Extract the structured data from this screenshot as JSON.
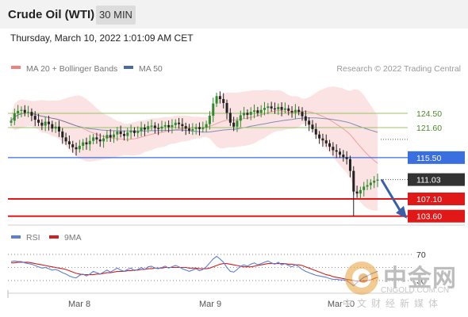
{
  "header": {
    "title": "Crude Oil (WTI)",
    "timeframe": "30 MIN"
  },
  "datetime": "Thursday, March 10, 2022 1:01:09 AM CET",
  "legend": {
    "ma20": "MA 20 + Bollinger Bands",
    "ma50": "MA 50",
    "credit": "Research © 2022 Trading Central",
    "rsi": "RSI",
    "rsi_ma": "9MA"
  },
  "colors": {
    "ma20_band": "#f08080",
    "ma50": "#4a6aa5",
    "resistance": "#9dc16b",
    "pivot": "#3a6fe0",
    "support": "#e01818",
    "last_price": "#333333",
    "rsi": "#5b7fd6",
    "rsi_ma": "#d02020",
    "candle_up": "#2e8b2e",
    "candle_down": "#222222"
  },
  "watermark": {
    "chars": "中金网",
    "url": "CNGOLD.COM.CN",
    "sub": "中文财经新媒体"
  },
  "chart_data": {
    "type": "candlestick",
    "x_labels": [
      "Mar 8",
      "Mar 9",
      "Mar 10"
    ],
    "last_price": 111.03,
    "levels": [
      {
        "value": 124.5,
        "label": "124.50",
        "kind": "resistance"
      },
      {
        "value": 121.6,
        "label": "121.60",
        "kind": "resistance"
      },
      {
        "value": 115.5,
        "label": "115.50",
        "kind": "pivot"
      },
      {
        "value": 107.1,
        "label": "107.10",
        "kind": "support"
      },
      {
        "value": 103.6,
        "label": "103.60",
        "kind": "support"
      }
    ],
    "close": [
      123.0,
      124.5,
      125.0,
      125.2,
      124.6,
      124.8,
      124.0,
      123.2,
      122.6,
      122.0,
      122.8,
      122.3,
      121.4,
      121.8,
      120.8,
      119.6,
      118.8,
      118.2,
      117.6,
      117.2,
      117.9,
      118.6,
      118.2,
      118.9,
      119.6,
      119.2,
      118.8,
      119.4,
      120.1,
      119.6,
      120.2,
      120.8,
      120.3,
      119.9,
      120.6,
      121.0,
      120.5,
      120.9,
      121.6,
      121.2,
      121.9,
      122.0,
      121.5,
      121.4,
      121.8,
      122.1,
      121.7,
      122.1,
      122.6,
      122.3,
      121.9,
      121.4,
      121.0,
      121.3,
      121.7,
      121.3,
      121.6,
      122.3,
      124.0,
      126.5,
      128.0,
      127.4,
      126.6,
      124.6,
      122.6,
      121.8,
      123.0,
      124.1,
      124.6,
      124.2,
      124.8,
      125.1,
      124.6,
      125.2,
      125.6,
      125.9,
      125.5,
      125.3,
      125.8,
      125.2,
      125.5,
      125.0,
      124.7,
      125.2,
      124.8,
      123.9,
      123.0,
      122.2,
      121.3,
      120.2,
      119.4,
      119.0,
      118.4,
      117.7,
      117.0,
      116.7,
      116.1,
      115.6,
      115.2,
      112.8,
      108.6,
      108.2,
      108.9,
      109.6,
      109.9,
      110.4,
      110.8,
      111.03
    ],
    "rsi_levels": [
      70,
      30
    ],
    "rsi": [
      59,
      60,
      59,
      59,
      57,
      56,
      55,
      53,
      51,
      49,
      50,
      48,
      46,
      47,
      45,
      42,
      40,
      37,
      35,
      34,
      38,
      40,
      37,
      40,
      44,
      42,
      40,
      43,
      46,
      43,
      46,
      49,
      46,
      44,
      47,
      49,
      45,
      47,
      50,
      47,
      51,
      52,
      49,
      48,
      50,
      52,
      49,
      51,
      53,
      51,
      48,
      46,
      44,
      46,
      48,
      45,
      47,
      51,
      57,
      63,
      67,
      63,
      58,
      50,
      44,
      43,
      47,
      52,
      54,
      52,
      55,
      57,
      54,
      56,
      58,
      60,
      57,
      55,
      58,
      54,
      56,
      53,
      51,
      54,
      51,
      47,
      44,
      42,
      40,
      38,
      37,
      36,
      35,
      33,
      32,
      32,
      31,
      31,
      30,
      26,
      22,
      27,
      31,
      35,
      37,
      40,
      42,
      44
    ],
    "rsi_ma": [
      57,
      57,
      58,
      58,
      58,
      58,
      57,
      56,
      55,
      54,
      53,
      52,
      51,
      50,
      49,
      48,
      47,
      45,
      43,
      41,
      40,
      39,
      39,
      39,
      39,
      40,
      40,
      41,
      42,
      42,
      43,
      44,
      44,
      44,
      45,
      45,
      46,
      46,
      47,
      47,
      48,
      48,
      49,
      49,
      49,
      50,
      50,
      50,
      50,
      50,
      50,
      50,
      49,
      49,
      49,
      48,
      48,
      48,
      49,
      51,
      53,
      55,
      56,
      56,
      55,
      54,
      53,
      52,
      51,
      51,
      51,
      52,
      53,
      54,
      55,
      56,
      56,
      56,
      56,
      56,
      56,
      55,
      55,
      54,
      54,
      53,
      51,
      49,
      47,
      45,
      43,
      41,
      39,
      38,
      36,
      35,
      34,
      33,
      32,
      31,
      30,
      29,
      29,
      29,
      30,
      31,
      33,
      35
    ],
    "arrow": {
      "from": 111.03,
      "to": 103.6
    }
  }
}
